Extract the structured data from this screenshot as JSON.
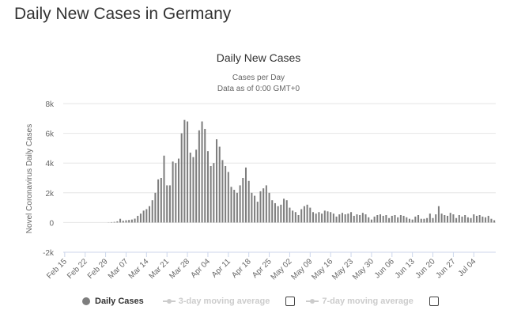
{
  "page": {
    "heading": "Daily New Cases in Germany"
  },
  "colors": {
    "bar": "#7e7e7e",
    "grid": "#e6e6e6",
    "axis_line": "#ccd6eb",
    "text": "#666666",
    "title": "#333333",
    "legend_inactive": "#cccccc"
  },
  "legend": {
    "items": [
      {
        "label": "Daily Cases",
        "active": true,
        "icon": "circle-marker"
      },
      {
        "label": "3-day moving average",
        "active": false,
        "icon": "line-marker",
        "checkbox": false
      },
      {
        "label": "7-day moving average",
        "active": false,
        "icon": "line-marker",
        "checkbox": false
      }
    ]
  },
  "chart_data": {
    "type": "bar",
    "title": "Daily New Cases",
    "subtitle_lines": [
      "Cases per Day",
      "Data as of 0:00 GMT+0"
    ],
    "ylabel": "Novel Coronavirus Daily Cases",
    "xlabel": "",
    "ylim": [
      -2000,
      8000
    ],
    "yticks": [
      -2000,
      0,
      2000,
      4000,
      6000,
      8000
    ],
    "ytick_labels": [
      "-2k",
      "0",
      "2k",
      "4k",
      "6k",
      "8k"
    ],
    "grid": true,
    "legend_position": "bottom",
    "xtick_labels": [
      "Feb 15",
      "Feb 22",
      "Feb 29",
      "Mar 07",
      "Mar 14",
      "Mar 21",
      "Mar 28",
      "Apr 04",
      "Apr 11",
      "Apr 18",
      "Apr 25",
      "May 02",
      "May 09",
      "May 16",
      "May 23",
      "May 30",
      "Jun 06",
      "Jun 13",
      "Jun 20",
      "Jun 27",
      "Jul 04"
    ],
    "series": [
      {
        "name": "Daily Cases",
        "start_date": "Feb 15",
        "values": [
          0,
          0,
          0,
          0,
          0,
          0,
          0,
          0,
          0,
          0,
          0,
          0,
          0,
          0,
          0,
          10,
          25,
          40,
          80,
          250,
          120,
          150,
          170,
          200,
          260,
          450,
          600,
          800,
          900,
          1100,
          1500,
          2000,
          2900,
          3000,
          4500,
          2500,
          2500,
          4100,
          4000,
          4300,
          6000,
          6900,
          6800,
          4700,
          4400,
          4900,
          6200,
          6800,
          6300,
          4800,
          3800,
          4000,
          5600,
          5100,
          4200,
          3800,
          3400,
          2400,
          2200,
          2000,
          2500,
          3000,
          3700,
          2800,
          2000,
          1800,
          1400,
          2100,
          2300,
          2500,
          2000,
          1500,
          1300,
          1100,
          1200,
          1600,
          1500,
          1000,
          800,
          700,
          500,
          900,
          1100,
          1200,
          1000,
          700,
          600,
          700,
          600,
          800,
          750,
          700,
          600,
          400,
          550,
          650,
          550,
          600,
          700,
          450,
          550,
          500,
          650,
          550,
          350,
          200,
          400,
          500,
          550,
          450,
          500,
          300,
          450,
          500,
          350,
          500,
          450,
          350,
          250,
          200,
          400,
          500,
          250,
          250,
          300,
          600,
          300,
          550,
          1100,
          600,
          500,
          450,
          650,
          550,
          300,
          500,
          400,
          500,
          350,
          300,
          550,
          450,
          500,
          400,
          350,
          450,
          250,
          150
        ]
      }
    ]
  }
}
